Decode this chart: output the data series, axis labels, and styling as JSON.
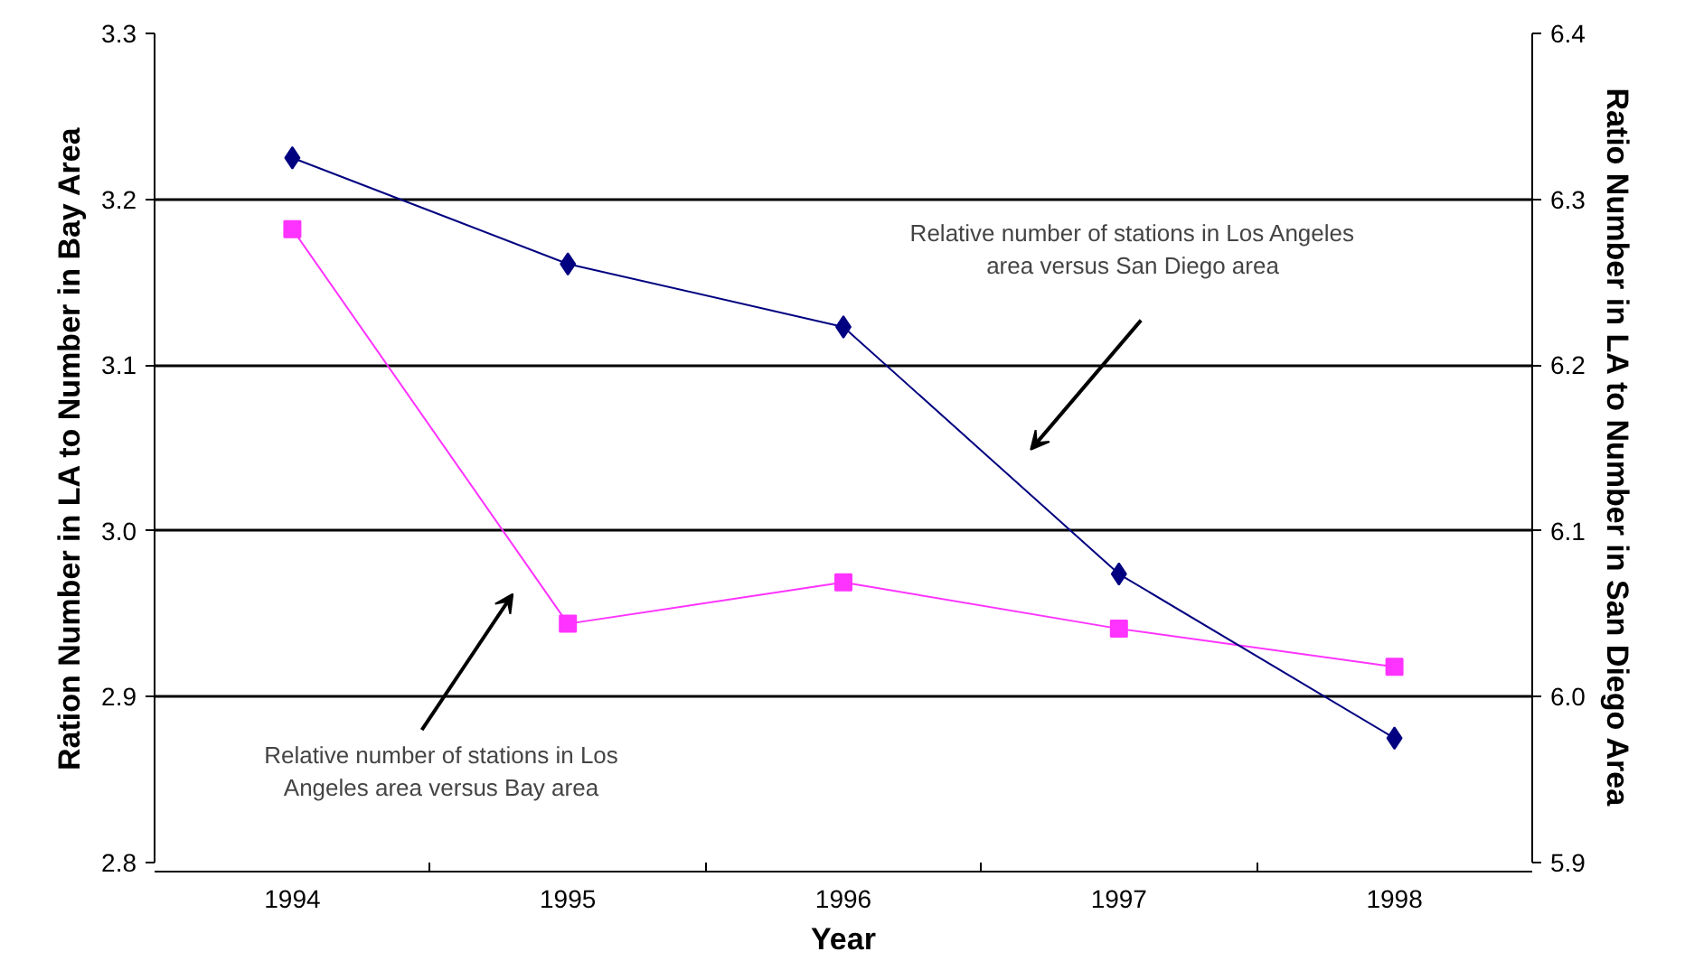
{
  "chart_data": {
    "type": "line",
    "xlabel": "Year",
    "ylabel": "Ration Number in LA to Number in Bay Area",
    "y2label": "Ratio Number in LA to Number in San Diego Area",
    "categories": [
      "1994",
      "1995",
      "1996",
      "1997",
      "1998"
    ],
    "series": [
      {
        "color": "#ff33ff",
        "marker": "square",
        "values": [
          3.182,
          2.944,
          2.969,
          2.941,
          2.918
        ]
      },
      {
        "color": "#000080",
        "marker": "diamond",
        "axis": "y2",
        "values": [
          6.325,
          6.261,
          6.223,
          6.074,
          5.975
        ]
      }
    ],
    "ylim": [
      2.8,
      3.3
    ],
    "yticks": [
      {
        "value": 2.8,
        "label": "2.8"
      },
      {
        "value": 2.9,
        "label": "2.9"
      },
      {
        "value": 3.0,
        "label": "3.0"
      },
      {
        "value": 3.1,
        "label": "3.1"
      },
      {
        "value": 3.2,
        "label": "3.2"
      },
      {
        "value": 3.3,
        "label": "3.3"
      }
    ],
    "y2lim": [
      5.9,
      6.4
    ],
    "y2ticks": [
      {
        "value": 5.9,
        "label": "5.9"
      },
      {
        "value": 6.0,
        "label": "6.0"
      },
      {
        "value": 6.1,
        "label": "6.1"
      },
      {
        "value": 6.2,
        "label": "6.2"
      },
      {
        "value": 6.3,
        "label": "6.3"
      },
      {
        "value": 6.4,
        "label": "6.4"
      }
    ],
    "grid": "y",
    "line_style": "solid",
    "annotations": [
      "Relative number of stations in Los\nAngeles area versus Bay area",
      "Relative number of stations in Los Angeles\narea versus San Diego area"
    ]
  }
}
